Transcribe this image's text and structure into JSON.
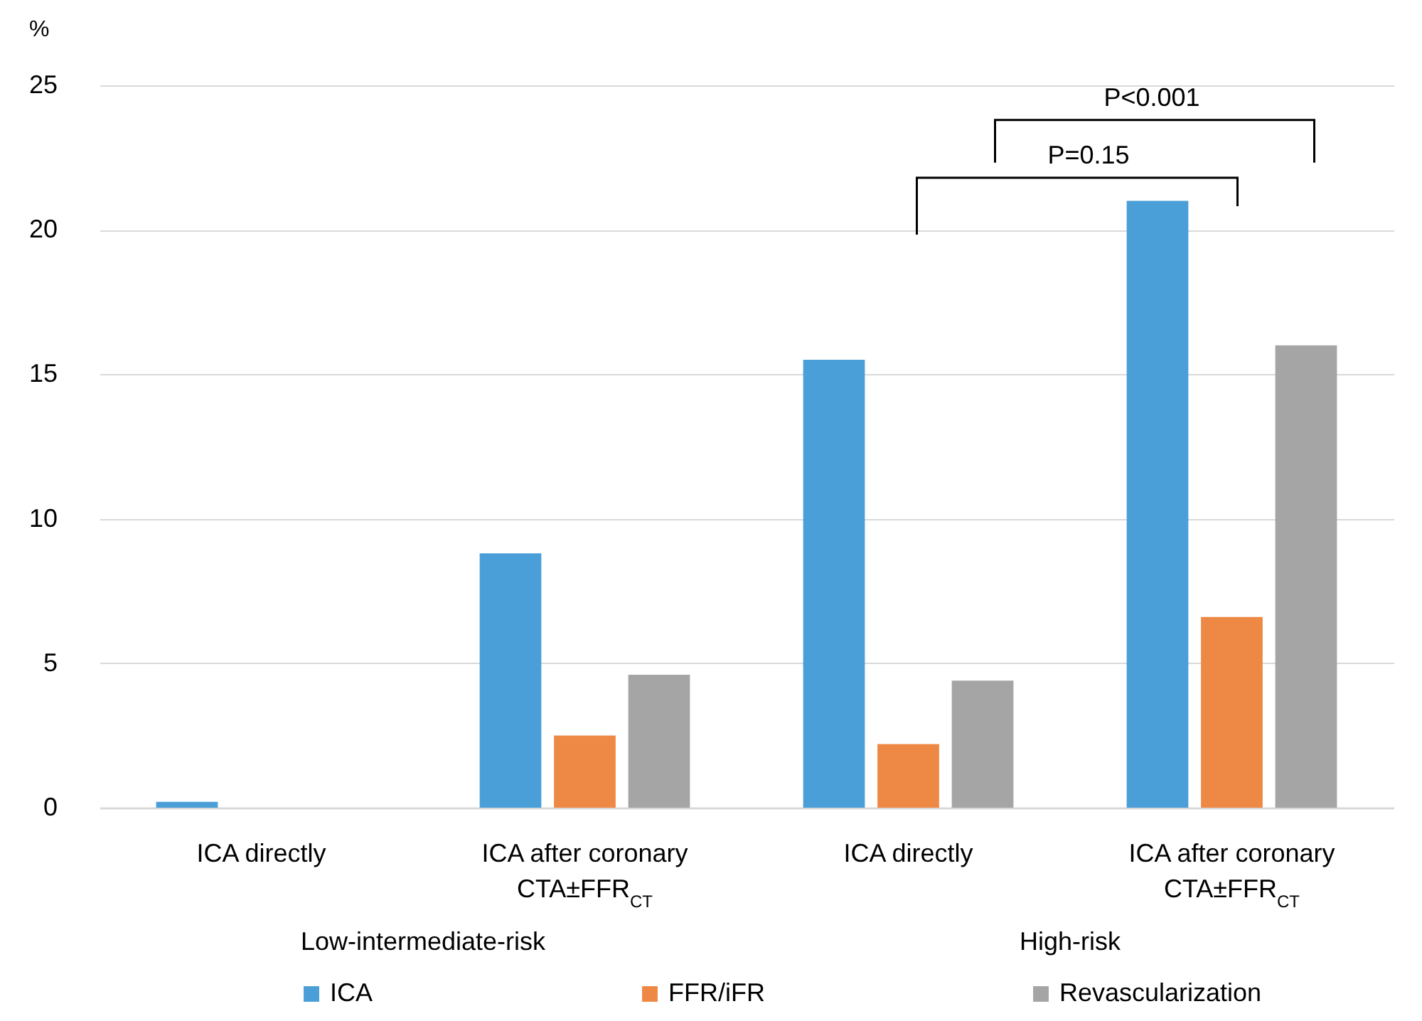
{
  "chart_data": {
    "type": "bar",
    "ylabel": "%",
    "categories": [
      "ICA directly",
      "ICA after coronary CTA±FFR$_{CT}$",
      "ICA directly",
      "ICA after coronary CTA±FFR$_{CT}$"
    ],
    "series": [
      {
        "name": "ICA",
        "color": "#4a9fd8",
        "values": [
          0.2,
          8.8,
          15.5,
          21.0
        ]
      },
      {
        "name": "FFR/iFR",
        "color": "#ee8845",
        "values": [
          0,
          2.5,
          2.2,
          6.6
        ]
      },
      {
        "name": "Revascularization",
        "color": "#a5a5a5",
        "values": [
          0,
          4.6,
          4.4,
          16.0
        ]
      }
    ],
    "ylim": [
      0,
      25
    ],
    "yticks": [
      0,
      5,
      10,
      15,
      20,
      25
    ],
    "grid": "y",
    "legend": "bottom",
    "annotations": [
      "P<0.001",
      "P=0.15",
      "Low-intermediate-risk",
      "High-risk"
    ]
  }
}
